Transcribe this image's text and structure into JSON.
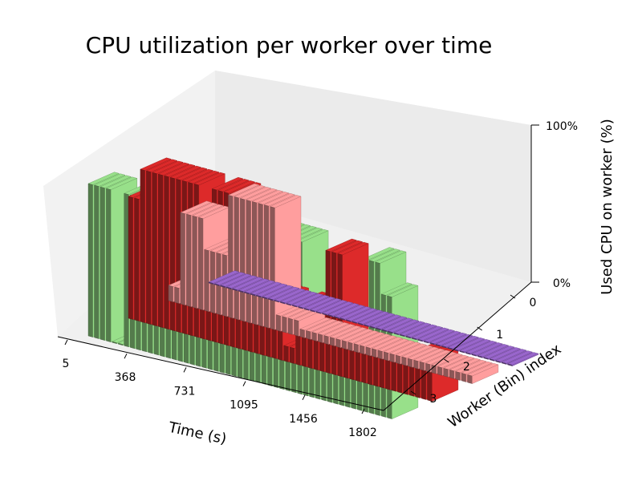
{
  "chart_data": {
    "type": "bar3d",
    "title": "CPU utilization per worker over time",
    "xlabel": "Time (s)",
    "ylabel": "Worker (Bin) index",
    "zlabel": "Used CPU on worker (%)",
    "x_ticks": [
      "5",
      "368",
      "731",
      "1095",
      "1456",
      "1802"
    ],
    "y_ticks": [
      "0",
      "1",
      "2",
      "3"
    ],
    "z_ticks": [
      "0%",
      "100%"
    ],
    "zlim": [
      0,
      100
    ],
    "grid": false,
    "series": [
      {
        "worker": 0,
        "color": "#98e08a",
        "values": [
          100,
          100,
          100,
          100,
          0,
          0,
          100,
          100,
          100,
          100,
          100,
          100,
          100,
          100,
          40,
          100,
          100,
          100,
          100,
          100,
          100,
          100,
          100,
          100,
          100,
          100,
          100,
          100,
          100,
          100,
          100,
          100,
          100,
          100,
          100,
          100,
          20,
          20,
          20,
          20,
          40,
          40,
          40,
          60,
          60,
          30,
          100,
          100,
          100,
          80,
          80
        ]
      },
      {
        "worker": 1,
        "color": "#dd2a2a",
        "values": [
          80,
          80,
          100,
          100,
          100,
          100,
          100,
          100,
          100,
          100,
          100,
          100,
          60,
          60,
          100,
          100,
          100,
          100,
          60,
          60,
          60,
          60,
          40,
          40,
          40,
          40,
          10,
          10,
          40,
          40,
          40,
          40,
          40,
          80,
          80,
          80,
          20,
          20,
          20,
          20,
          20,
          20,
          20,
          20,
          20,
          20,
          20,
          20,
          30,
          30,
          30
        ]
      },
      {
        "worker": 2,
        "color": "#ff9e9e",
        "values": [
          10,
          10,
          60,
          60,
          60,
          60,
          40,
          40,
          40,
          40,
          80,
          80,
          80,
          80,
          80,
          80,
          80,
          80,
          10,
          10,
          10,
          10,
          5,
          5,
          5,
          5,
          5,
          5,
          5,
          5,
          5,
          5,
          5,
          5,
          5,
          5,
          5,
          5,
          5,
          5,
          5,
          5,
          5,
          5,
          5,
          5,
          5,
          5,
          5,
          5,
          5
        ]
      },
      {
        "worker": 3,
        "color": "#9966cc",
        "values": [
          0,
          0,
          0,
          0,
          0,
          0,
          0,
          0,
          0,
          0,
          0,
          0,
          0,
          0,
          0,
          0,
          0,
          0,
          0,
          0,
          0,
          0,
          0,
          0,
          0,
          0,
          0,
          0,
          0,
          0,
          0,
          0,
          0,
          0,
          0,
          0,
          0,
          0,
          0,
          0,
          0,
          0,
          0,
          0,
          0,
          0,
          0,
          0,
          0,
          0,
          0
        ]
      }
    ]
  }
}
